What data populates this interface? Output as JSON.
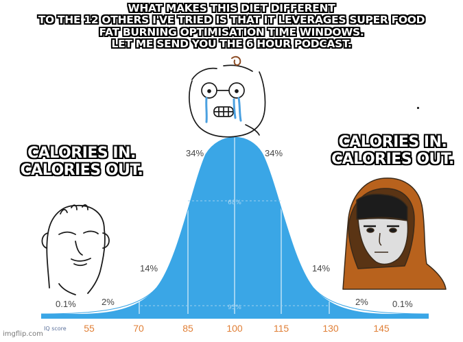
{
  "captions": {
    "top": [
      "WHAT MAKES THIS DIET DIFFERENT",
      "TO THE 12 OTHERS I'VE TRIED IS THAT IT LEVERAGES SUPER FOOD",
      "FAT BURNING OPTIMISATION TIME WINDOWS.",
      "LET ME SEND YOU THE 6 HOUR PODCAST."
    ],
    "left": [
      "CALORIES IN.",
      "CALORIES OUT."
    ],
    "right": [
      "CALORIES IN.",
      "CALORIES OUT."
    ]
  },
  "bell_curve": {
    "percent_labels": {
      "outer_left": "0.1%",
      "tail_left": "2%",
      "mid_left": "14%",
      "center_left": "34%",
      "center_right": "34%",
      "mid_right": "14%",
      "tail_right": "2%",
      "outer_right": "0.1%"
    },
    "inner_labels": {
      "band_68": "68%",
      "band_95": "95%"
    },
    "axis_title": "IQ score",
    "ticks": [
      "55",
      "70",
      "85",
      "100",
      "115",
      "130",
      "145"
    ]
  },
  "colors": {
    "curve_fill": "#3aa6e6",
    "axis_bar": "#3aa6e6",
    "label_gray": "#444444",
    "tick_orange": "#e07f36",
    "hood_brown": "#b8621d"
  },
  "characters": {
    "left": "wojak-bald-icon",
    "center": "crying-glasses-wojak-icon",
    "right": "hooded-monk-icon"
  },
  "watermark": "imgflip.com"
}
